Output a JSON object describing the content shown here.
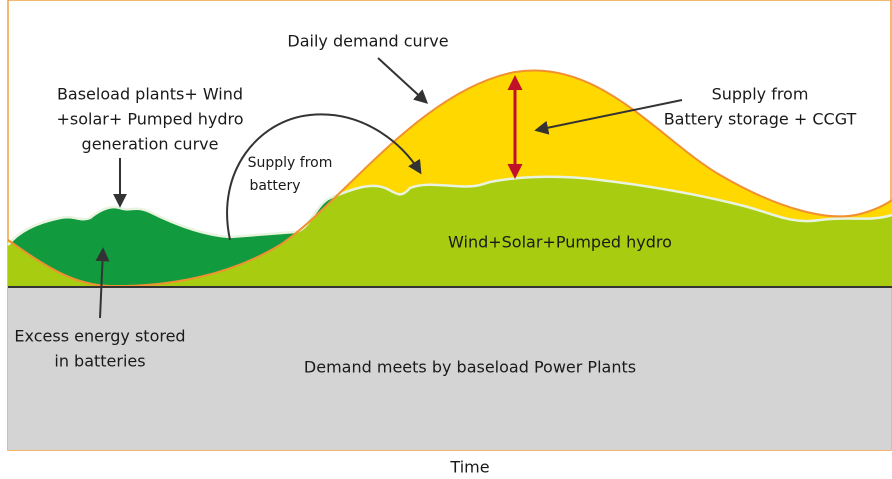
{
  "labels": {
    "daily_demand": "Daily demand curve",
    "generation_curve": [
      "Baseload plants+ Wind",
      "+solar+ Pumped hydro",
      "generation curve"
    ],
    "supply_battery": [
      "Supply from",
      "battery"
    ],
    "supply_battery_ccgt": [
      "Supply from",
      "Battery storage + CCGT"
    ],
    "wind_solar": "Wind+Solar+Pumped hydro",
    "excess": [
      "Excess energy stored",
      "in batteries"
    ],
    "baseload": "Demand meets by baseload Power Plants",
    "x_axis": "Time"
  }
}
